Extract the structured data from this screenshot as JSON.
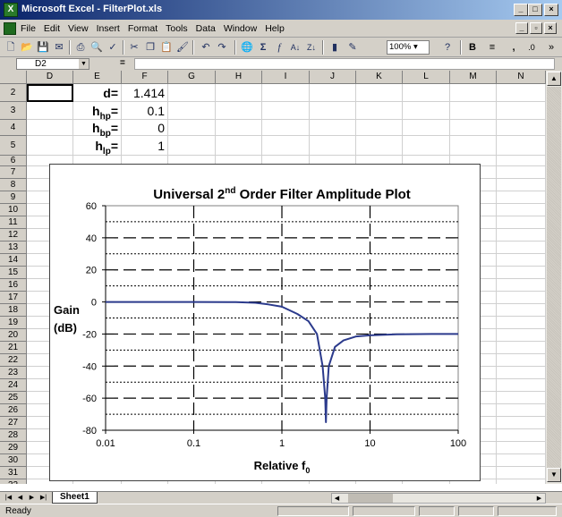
{
  "window": {
    "title": "Microsoft Excel - FilterPlot.xls",
    "app_icon": "excel-icon",
    "controls": [
      "minimize",
      "maximize",
      "close"
    ]
  },
  "menu": {
    "items": [
      "File",
      "Edit",
      "View",
      "Insert",
      "Format",
      "Tools",
      "Data",
      "Window",
      "Help"
    ]
  },
  "toolbar": {
    "zoom": "100%",
    "buttons": [
      "new-icon",
      "open-icon",
      "save-icon",
      "print-icon",
      "print-preview-icon",
      "spelling-icon",
      "cut-icon",
      "copy-icon",
      "paste-icon",
      "format-painter-icon",
      "undo-icon",
      "redo-icon",
      "hyperlink-icon",
      "autosum-icon",
      "function-icon",
      "sort-ascending-icon",
      "sort-descending-icon",
      "chart-wizard-icon",
      "drawing-icon",
      "help-icon",
      "bold-icon",
      "center-icon",
      "comma-style-icon",
      "increase-decimal-icon"
    ],
    "bold_label": "B",
    "more_label": "»"
  },
  "formula_bar": {
    "name_box": "D2",
    "equals": "=",
    "formula": ""
  },
  "sheet": {
    "columns": [
      "D",
      "E",
      "F",
      "G",
      "H",
      "I",
      "J",
      "K",
      "L",
      "M",
      "N"
    ],
    "rows": [
      "2",
      "3",
      "4",
      "5",
      "6",
      "7",
      "8",
      "9",
      "10",
      "11",
      "12",
      "13",
      "14",
      "15",
      "16",
      "17",
      "18",
      "19",
      "20",
      "21",
      "22",
      "23",
      "24",
      "25",
      "26",
      "27",
      "28",
      "29",
      "30",
      "31",
      "32"
    ],
    "cells": {
      "E2": "d=",
      "F2": "1.414",
      "E3_main": "h",
      "E3_sub": "hp",
      "E3_eq": "=",
      "F3": "0.1",
      "E4_main": "h",
      "E4_sub": "bp",
      "E4_eq": "=",
      "F4": "0",
      "E5_main": "h",
      "E5_sub": "lp",
      "E5_eq": "=",
      "F5": "1"
    },
    "active_cell": "D2"
  },
  "chart_data": {
    "type": "line",
    "title_main": "Universal 2",
    "title_sup": "nd",
    "title_rest": " Order Filter Amplitude Plot",
    "xlabel_main": "Relative f",
    "xlabel_sub": "0",
    "ylabel_line1": "Gain",
    "ylabel_line2": "(dB)",
    "x_scale": "log",
    "xlim": [
      0.01,
      100
    ],
    "ylim": [
      -80,
      60
    ],
    "x_ticks": [
      "0.01",
      "0.1",
      "1",
      "10",
      "100"
    ],
    "y_ticks": [
      "60",
      "40",
      "20",
      "0",
      "-20",
      "-40",
      "-60",
      "-80"
    ],
    "line_color": "#2b3a8c",
    "series": [
      {
        "x": [
          0.01,
          0.1,
          0.3,
          0.5,
          0.7,
          1.0,
          1.5,
          2.0,
          2.5,
          2.9,
          3.1,
          3.16,
          3.22,
          3.4,
          4.0,
          5.0,
          7.0,
          10,
          20,
          50,
          100
        ],
        "y": [
          0,
          0,
          -0.1,
          -0.5,
          -1.5,
          -3,
          -7.5,
          -12,
          -20,
          -40,
          -60,
          -75,
          -60,
          -40,
          -28,
          -24,
          -21.5,
          -20.8,
          -20.2,
          -20,
          -20
        ]
      }
    ]
  },
  "tabs": {
    "sheets": [
      "Sheet1"
    ]
  },
  "status": {
    "text": "Ready"
  }
}
